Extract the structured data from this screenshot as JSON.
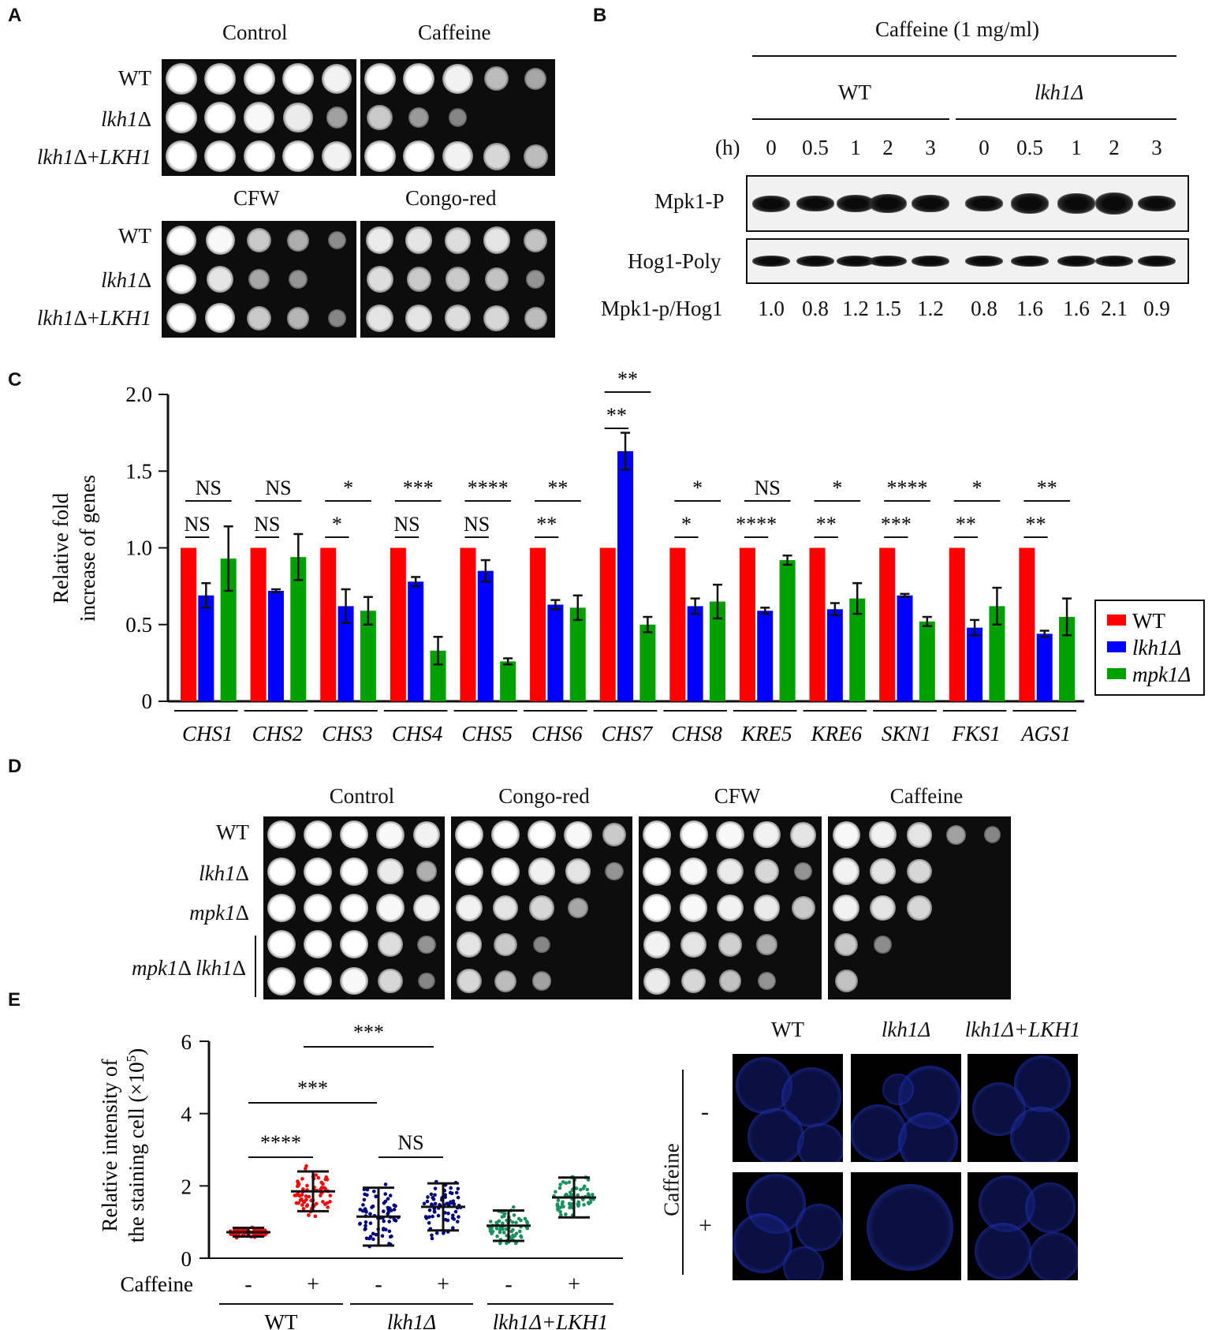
{
  "panelA": {
    "label": "A",
    "top_conditions": [
      "Control",
      "Caffeine"
    ],
    "bottom_conditions": [
      "CFW",
      "Congo-red"
    ],
    "strains": [
      {
        "pre": "WT",
        "ital": "",
        "post": ""
      },
      {
        "pre": "",
        "ital": "lkh1",
        "post": "Δ"
      },
      {
        "pre": "",
        "ital": "lkh1",
        "post": "Δ+",
        "ital2": "LKH1"
      }
    ]
  },
  "panelB": {
    "label": "B",
    "treatment": "Caffeine (1 mg/ml)",
    "groups": [
      "WT",
      "lkh1Δ"
    ],
    "time_label": "(h)",
    "times": [
      "0",
      "0.5",
      "1",
      "2",
      "3",
      "0",
      "0.5",
      "1",
      "2",
      "3"
    ],
    "row1_label": "Mpk1-P",
    "row2_label": "Hog1-Poly",
    "ratio_label": "Mpk1-p/Hog1",
    "ratios": [
      "1.0",
      "0.8",
      "1.2",
      "1.5",
      "1.2",
      "0.8",
      "1.6",
      "1.6",
      "2.1",
      "0.9"
    ]
  },
  "panelC": {
    "label": "C",
    "chart_data": {
      "type": "bar",
      "ylabel_line1": "Relative fold",
      "ylabel_line2": "increase of genes",
      "ylim": [
        0,
        2.0
      ],
      "yticks": [
        "0",
        "0.5",
        "1.0",
        "1.5",
        "2.0"
      ],
      "categories": [
        "CHS1",
        "CHS2",
        "CHS3",
        "CHS4",
        "CHS5",
        "CHS6",
        "CHS7",
        "CHS8",
        "KRE5",
        "KRE6",
        "SKN1",
        "FKS1",
        "AGS1"
      ],
      "series": [
        {
          "name": "WT",
          "color": "#ff0000",
          "values": [
            1,
            1,
            1,
            1,
            1,
            1,
            1,
            1,
            1,
            1,
            1,
            1,
            1
          ],
          "errors": [
            0,
            0,
            0,
            0,
            0,
            0,
            0,
            0,
            0,
            0,
            0,
            0,
            0
          ]
        },
        {
          "name": "lkh1Δ",
          "color": "#0000ff",
          "values": [
            0.69,
            0.72,
            0.62,
            0.78,
            0.85,
            0.63,
            1.63,
            0.62,
            0.59,
            0.6,
            0.69,
            0.48,
            0.44
          ],
          "errors": [
            0.08,
            0.01,
            0.11,
            0.03,
            0.07,
            0.03,
            0.12,
            0.05,
            0.02,
            0.04,
            0.01,
            0.05,
            0.02
          ]
        },
        {
          "name": "mpk1Δ",
          "color": "#00a000",
          "values": [
            0.93,
            0.94,
            0.59,
            0.33,
            0.26,
            0.61,
            0.5,
            0.65,
            0.92,
            0.67,
            0.52,
            0.62,
            0.55
          ],
          "errors": [
            0.21,
            0.15,
            0.09,
            0.09,
            0.02,
            0.08,
            0.05,
            0.11,
            0.03,
            0.1,
            0.03,
            0.12,
            0.12
          ]
        }
      ],
      "sig_wt_vs_lkh1": [
        "NS",
        "NS",
        "*",
        "NS",
        "NS",
        "**",
        "**",
        "*",
        "****",
        "**",
        "***",
        "**",
        "**"
      ],
      "sig_wt_vs_mpk1": [
        "NS",
        "NS",
        "*",
        "***",
        "****",
        "**",
        "**",
        "*",
        "NS",
        "*",
        "****",
        "*",
        "**"
      ],
      "legend": [
        "WT",
        "lkh1Δ",
        "mpk1Δ"
      ]
    }
  },
  "panelD": {
    "label": "D",
    "conditions": [
      "Control",
      "Congo-red",
      "CFW",
      "Caffeine"
    ],
    "strains": [
      {
        "pre": "WT",
        "ital": "",
        "post": ""
      },
      {
        "pre": "",
        "ital": "lkh1",
        "post": "Δ"
      },
      {
        "pre": "",
        "ital": "mpk1",
        "post": "Δ"
      },
      {
        "pre": "",
        "ital": "mpk1",
        "post": "Δ ",
        "ital2": "lkh1",
        "post2": "Δ"
      }
    ]
  },
  "panelE": {
    "label": "E",
    "chart_data": {
      "type": "scatter",
      "ylabel_line1": "Relative intensity of",
      "ylabel_line2": "the staining cell  (×10",
      "ylabel_sup": "5",
      "ylabel_end": ")",
      "ylim": [
        0,
        6
      ],
      "yticks": [
        "0",
        "2",
        "4",
        "6"
      ],
      "xrow_label": "Caffeine",
      "x_treatment": [
        "-",
        "+",
        "-",
        "+",
        "-",
        "+"
      ],
      "groups": [
        "WT",
        "lkh1Δ",
        "lkh1Δ+LKH1"
      ],
      "series": [
        {
          "color": "#ff0000",
          "mean": 0.72,
          "sd": 0.12
        },
        {
          "color": "#ff0000",
          "mean": 1.85,
          "sd": 0.55
        },
        {
          "color": "#000080",
          "mean": 1.15,
          "sd": 0.8
        },
        {
          "color": "#000080",
          "mean": 1.42,
          "sd": 0.65
        },
        {
          "color": "#1a9060",
          "mean": 0.9,
          "sd": 0.42
        },
        {
          "color": "#1a9060",
          "mean": 1.68,
          "sd": 0.55
        }
      ],
      "significance": [
        "***",
        "***",
        "****",
        "NS"
      ]
    },
    "micro_cols": [
      "WT",
      "lkh1Δ",
      "lkh1Δ+LKH1"
    ],
    "micro_side": "Caffeine",
    "micro_rows": [
      "-",
      "+"
    ]
  }
}
